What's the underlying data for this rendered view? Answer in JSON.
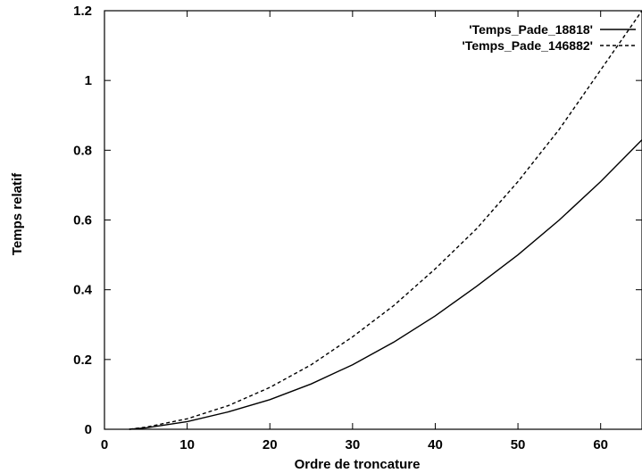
{
  "chart_data": {
    "type": "line",
    "xlabel": "Ordre de troncature",
    "ylabel": "Temps relatif",
    "xlim": [
      0,
      65
    ],
    "ylim": [
      0,
      1.2
    ],
    "x_ticks": [
      0,
      10,
      20,
      30,
      40,
      50,
      60
    ],
    "y_ticks": [
      0,
      0.2,
      0.4,
      0.6,
      0.8,
      1,
      1.2
    ],
    "x_tick_labels": [
      "0",
      "10",
      "20",
      "30",
      "40",
      "50",
      "60"
    ],
    "y_tick_labels": [
      "0",
      "0.2",
      "0.4",
      "0.6",
      "0.8",
      "1",
      "1.2"
    ],
    "grid": false,
    "legend_position": "top-right",
    "series": [
      {
        "name": "'Temps_Pade_18818'",
        "style": "solid",
        "color": "#000000",
        "x": [
          3,
          5,
          10,
          15,
          20,
          25,
          30,
          35,
          40,
          45,
          50,
          55,
          60,
          65
        ],
        "y": [
          0.0,
          0.004,
          0.022,
          0.05,
          0.085,
          0.13,
          0.185,
          0.25,
          0.325,
          0.41,
          0.5,
          0.6,
          0.71,
          0.83
        ]
      },
      {
        "name": "'Temps_Pade_146882'",
        "style": "dashed",
        "color": "#000000",
        "x": [
          3,
          5,
          10,
          15,
          20,
          25,
          30,
          35,
          40,
          45,
          50,
          55,
          60,
          65
        ],
        "y": [
          0.0,
          0.006,
          0.03,
          0.068,
          0.12,
          0.185,
          0.265,
          0.355,
          0.46,
          0.575,
          0.71,
          0.86,
          1.03,
          1.2
        ]
      }
    ]
  }
}
